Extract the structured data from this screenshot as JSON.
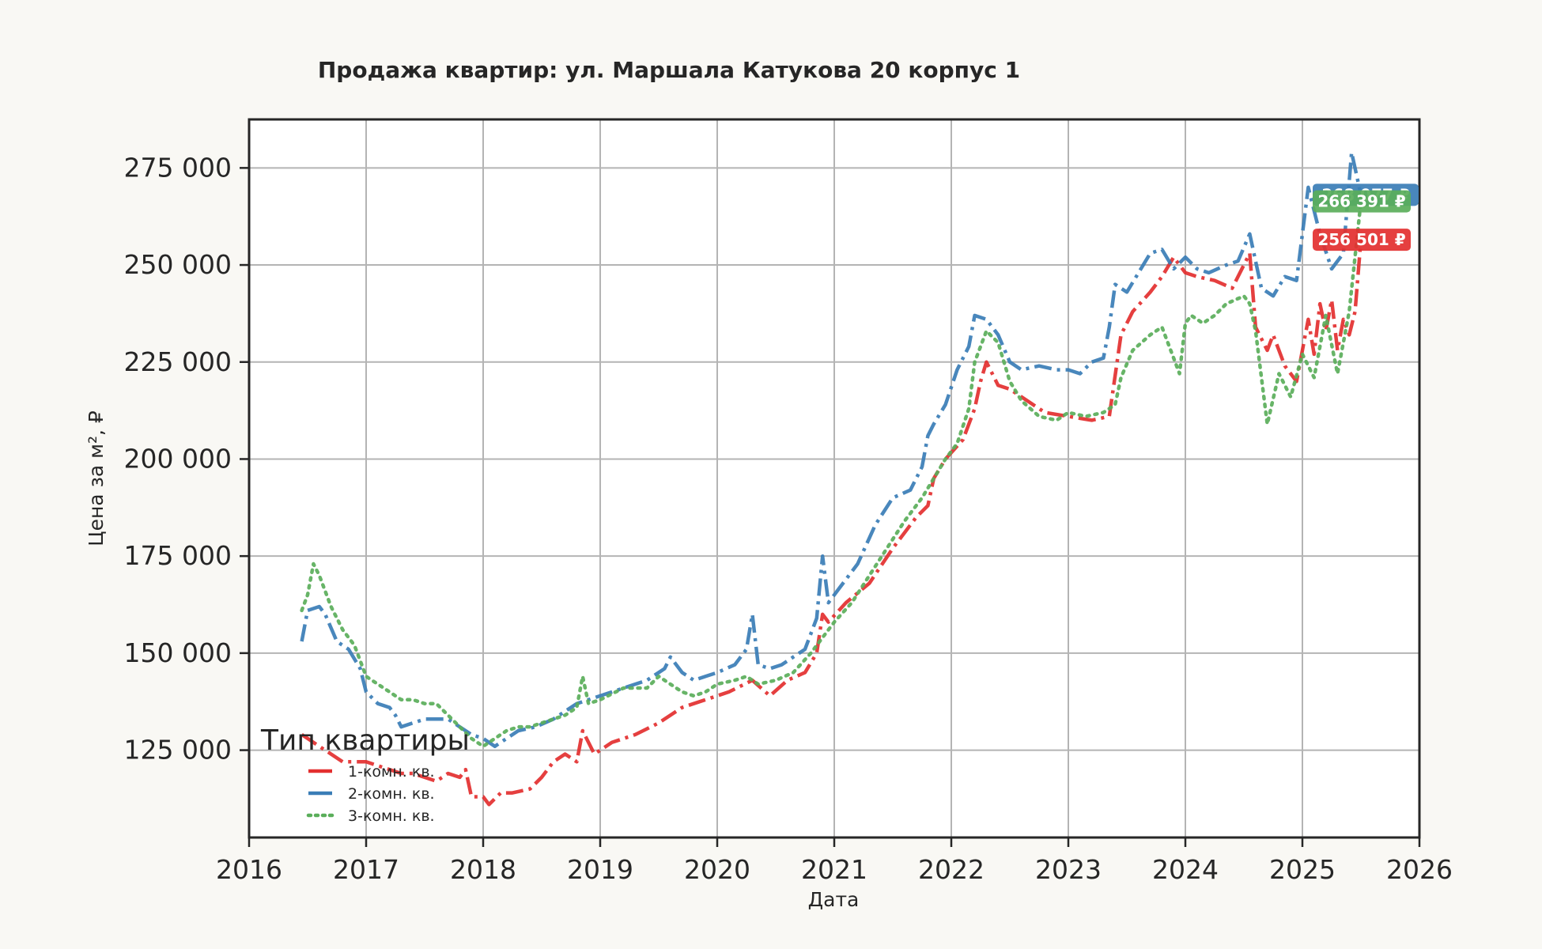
{
  "chart_data": {
    "type": "line",
    "title": "Продажа квартир: ул. Маршала Катукова 20 корпус 1",
    "xlabel": "Дата",
    "ylabel": "Цена за м², ₽",
    "xlim": [
      2016.0,
      2026.0
    ],
    "ylim": [
      102500,
      287500
    ],
    "x_ticks": [
      "2016",
      "2017",
      "2018",
      "2019",
      "2020",
      "2021",
      "2022",
      "2023",
      "2024",
      "2025",
      "2026"
    ],
    "y_ticks": [
      {
        "value": 125000,
        "label": "125 000"
      },
      {
        "value": 150000,
        "label": "150 000"
      },
      {
        "value": 175000,
        "label": "175 000"
      },
      {
        "value": 200000,
        "label": "200 000"
      },
      {
        "value": 225000,
        "label": "225 000"
      },
      {
        "value": 250000,
        "label": "250 000"
      },
      {
        "value": 275000,
        "label": "275 000"
      }
    ],
    "grid": true,
    "legend": {
      "title": "Тип квартиры",
      "position": "bottom-left"
    },
    "series": [
      {
        "name": "1-комн. кв.",
        "color": "#e32f2f",
        "dash": "dashdot",
        "x": [
          2016.45,
          2016.5,
          2016.6,
          2016.7,
          2016.8,
          2016.9,
          2017.0,
          2017.1,
          2017.2,
          2017.3,
          2017.4,
          2017.5,
          2017.6,
          2017.7,
          2017.8,
          2017.85,
          2017.9,
          2018.0,
          2018.05,
          2018.15,
          2018.25,
          2018.4,
          2018.5,
          2018.6,
          2018.7,
          2018.8,
          2018.85,
          2018.95,
          2019.1,
          2019.3,
          2019.5,
          2019.7,
          2019.9,
          2020.1,
          2020.3,
          2020.45,
          2020.6,
          2020.75,
          2020.85,
          2020.9,
          2020.95,
          2021.1,
          2021.3,
          2021.5,
          2021.7,
          2021.8,
          2021.85,
          2021.95,
          2022.1,
          2022.2,
          2022.25,
          2022.3,
          2022.4,
          2022.5,
          2022.6,
          2022.8,
          2023.0,
          2023.2,
          2023.35,
          2023.45,
          2023.55,
          2023.7,
          2023.8,
          2023.9,
          2024.0,
          2024.1,
          2024.25,
          2024.4,
          2024.55,
          2024.6,
          2024.7,
          2024.75,
          2024.85,
          2024.95,
          2025.0,
          2025.05,
          2025.1,
          2025.15,
          2025.2,
          2025.25,
          2025.3,
          2025.35,
          2025.4,
          2025.45,
          2025.5
        ],
        "values": [
          129000,
          128000,
          126000,
          124000,
          122000,
          122000,
          122000,
          121000,
          120000,
          119000,
          119000,
          118000,
          117000,
          119000,
          118000,
          120000,
          113000,
          113000,
          111000,
          114000,
          114000,
          115000,
          118000,
          122000,
          124000,
          122000,
          130000,
          124000,
          127000,
          129000,
          132000,
          136000,
          138000,
          140000,
          143000,
          139000,
          143000,
          145000,
          150000,
          160000,
          158000,
          163000,
          168000,
          177000,
          185000,
          188000,
          195000,
          200000,
          205000,
          213000,
          220000,
          225000,
          219000,
          218000,
          216000,
          212000,
          211000,
          210000,
          211000,
          232000,
          238000,
          243000,
          247000,
          252000,
          248000,
          247000,
          246000,
          244000,
          253000,
          234000,
          228000,
          232000,
          224000,
          220000,
          228000,
          236000,
          227000,
          240000,
          233000,
          241000,
          228000,
          236000,
          232000,
          238000,
          256501
        ]
      },
      {
        "name": "2-комн. кв.",
        "color": "#3a7db6",
        "dash": "dashdot",
        "x": [
          2016.45,
          2016.5,
          2016.6,
          2016.65,
          2016.75,
          2016.85,
          2016.95,
          2017.0,
          2017.1,
          2017.2,
          2017.25,
          2017.3,
          2017.4,
          2017.5,
          2017.6,
          2017.7,
          2017.8,
          2017.9,
          2018.0,
          2018.1,
          2018.2,
          2018.3,
          2018.45,
          2018.6,
          2018.7,
          2018.8,
          2018.9,
          2019.0,
          2019.2,
          2019.4,
          2019.55,
          2019.6,
          2019.7,
          2019.8,
          2019.9,
          2020.0,
          2020.15,
          2020.25,
          2020.3,
          2020.35,
          2020.45,
          2020.55,
          2020.65,
          2020.75,
          2020.85,
          2020.9,
          2020.95,
          2021.05,
          2021.2,
          2021.35,
          2021.5,
          2021.65,
          2021.75,
          2021.8,
          2021.85,
          2021.95,
          2022.05,
          2022.15,
          2022.2,
          2022.3,
          2022.4,
          2022.5,
          2022.6,
          2022.75,
          2022.9,
          2023.0,
          2023.1,
          2023.2,
          2023.3,
          2023.35,
          2023.4,
          2023.5,
          2023.6,
          2023.7,
          2023.8,
          2023.9,
          2024.0,
          2024.1,
          2024.2,
          2024.35,
          2024.45,
          2024.55,
          2024.65,
          2024.75,
          2024.85,
          2024.95,
          2025.0,
          2025.05,
          2025.15,
          2025.25,
          2025.35,
          2025.42,
          2025.5
        ],
        "values": [
          153000,
          161000,
          162000,
          160000,
          153000,
          151000,
          146000,
          140000,
          137000,
          136000,
          134000,
          131000,
          132000,
          133000,
          133000,
          133000,
          131000,
          129000,
          128000,
          126000,
          128000,
          130000,
          131000,
          133000,
          135000,
          137000,
          138000,
          139000,
          141000,
          143000,
          146000,
          149000,
          145000,
          143000,
          144000,
          145000,
          147000,
          151000,
          160000,
          147000,
          146000,
          147000,
          149000,
          151000,
          159000,
          175000,
          163000,
          167000,
          173000,
          183000,
          190000,
          192000,
          198000,
          206000,
          209000,
          214000,
          223000,
          229000,
          237000,
          236000,
          232000,
          225000,
          223000,
          224000,
          223000,
          223000,
          222000,
          225000,
          226000,
          234000,
          245000,
          243000,
          248000,
          253000,
          254000,
          249000,
          252000,
          249000,
          248000,
          250000,
          251000,
          258000,
          244000,
          242000,
          247000,
          246000,
          258000,
          270000,
          258000,
          249000,
          253000,
          279000,
          268077
        ]
      },
      {
        "name": "3-комн. кв.",
        "color": "#5aae5a",
        "dash": "dotted",
        "x": [
          2016.45,
          2016.5,
          2016.55,
          2016.6,
          2016.7,
          2016.8,
          2016.9,
          2017.0,
          2017.1,
          2017.2,
          2017.3,
          2017.4,
          2017.5,
          2017.6,
          2017.7,
          2017.8,
          2017.9,
          2018.0,
          2018.1,
          2018.2,
          2018.3,
          2018.4,
          2018.5,
          2018.6,
          2018.7,
          2018.8,
          2018.85,
          2018.9,
          2019.0,
          2019.2,
          2019.4,
          2019.5,
          2019.6,
          2019.7,
          2019.8,
          2019.9,
          2020.0,
          2020.15,
          2020.25,
          2020.35,
          2020.5,
          2020.65,
          2020.8,
          2020.9,
          2021.0,
          2021.15,
          2021.3,
          2021.45,
          2021.6,
          2021.75,
          2021.85,
          2021.95,
          2022.05,
          2022.15,
          2022.2,
          2022.3,
          2022.4,
          2022.5,
          2022.6,
          2022.75,
          2022.9,
          2023.0,
          2023.15,
          2023.3,
          2023.4,
          2023.45,
          2023.55,
          2023.7,
          2023.8,
          2023.9,
          2023.95,
          2024.0,
          2024.05,
          2024.15,
          2024.25,
          2024.35,
          2024.5,
          2024.55,
          2024.6,
          2024.7,
          2024.8,
          2024.9,
          2025.0,
          2025.1,
          2025.2,
          2025.3,
          2025.4,
          2025.5
        ],
        "values": [
          161000,
          165000,
          173000,
          170000,
          162000,
          156000,
          152000,
          144000,
          142000,
          140000,
          138000,
          138000,
          137000,
          137000,
          134000,
          131000,
          128000,
          126000,
          128000,
          130000,
          131000,
          131000,
          132000,
          133000,
          134000,
          136000,
          144000,
          137000,
          138000,
          141000,
          141000,
          144000,
          142000,
          140000,
          139000,
          140000,
          142000,
          143000,
          144000,
          142000,
          143000,
          145000,
          150000,
          154000,
          158000,
          163000,
          170000,
          177000,
          184000,
          190000,
          195000,
          200000,
          204000,
          213000,
          225000,
          233000,
          230000,
          220000,
          215000,
          211000,
          210000,
          212000,
          211000,
          212000,
          214000,
          221000,
          228000,
          232000,
          234000,
          226000,
          222000,
          235000,
          237000,
          235000,
          237000,
          240000,
          242000,
          240000,
          233000,
          209000,
          222000,
          216000,
          227000,
          221000,
          237000,
          222000,
          238000,
          266391
        ]
      }
    ],
    "end_labels": [
      {
        "text": "268 077 ₽",
        "color": "#3a7db6"
      },
      {
        "text": "266 391 ₽",
        "color": "#5aae5a"
      },
      {
        "text": "256 501 ₽",
        "color": "#e32f2f"
      }
    ]
  }
}
